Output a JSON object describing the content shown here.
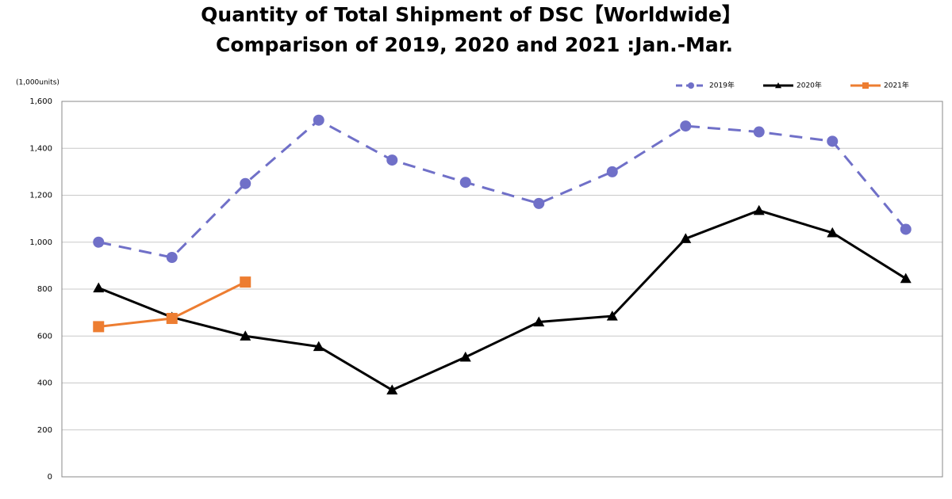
{
  "chart_data": {
    "type": "line",
    "title": "Quantity of Total Shipment of DSC【Worldwide】",
    "subtitle": "Comparison of 2019, 2020 and 2021 :Jan.-Mar.",
    "y_label": "(1,000units)",
    "categories": [
      null,
      null,
      null,
      null,
      null,
      null,
      null,
      null,
      null,
      null,
      null,
      null
    ],
    "series": [
      {
        "name": "2019年",
        "color": "#7070c8",
        "dash": true,
        "marker": "circle",
        "values": [
          1000,
          935,
          1250,
          1520,
          1350,
          1255,
          1165,
          1300,
          1495,
          1470,
          1430,
          1055
        ]
      },
      {
        "name": "2020年",
        "color": "#000000",
        "dash": false,
        "marker": "triangle",
        "values": [
          805,
          680,
          600,
          555,
          370,
          510,
          660,
          685,
          1015,
          1135,
          1040,
          845
        ]
      },
      {
        "name": "2021年",
        "color": "#ed7d31",
        "dash": false,
        "marker": "square",
        "values": [
          640,
          675,
          830,
          null,
          null,
          null,
          null,
          null,
          null,
          null,
          null,
          null
        ]
      }
    ],
    "ylim": [
      0,
      1600
    ],
    "yticks": [
      0,
      200,
      400,
      600,
      800,
      {
        "value": 1000,
        "label": "1,000"
      },
      {
        "value": 1200,
        "label": "1,200"
      },
      {
        "value": 1400,
        "label": "1,400"
      },
      {
        "value": 1600,
        "label": "1,600"
      }
    ],
    "grid": true,
    "legend": "top-right"
  }
}
